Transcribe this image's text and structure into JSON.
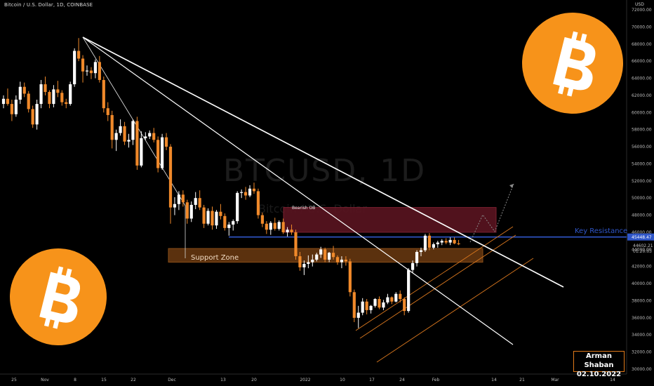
{
  "header": {
    "title": "Bitcoin / U.S. Dollar, 1D, COINBASE",
    "currency": "USD"
  },
  "watermark": {
    "symbol": "BTCUSD, 1D",
    "name": "Bitcoin / U.S. Dollar"
  },
  "signature": {
    "name": "Arman Shaban",
    "date": "02.10.2022"
  },
  "colors": {
    "background": "#000000",
    "up_candle": "#ffffff",
    "down_candle": "#f0892a",
    "trendline": "#ffffff",
    "key_resistance": "#2f56c8",
    "support_zone": "#6b3a10",
    "bearish_ob": "#5a1420",
    "channel": "#d9771e",
    "logo": "#f7931a"
  },
  "chart_data": {
    "type": "candlestick",
    "y_axis": {
      "min": 30000,
      "max": 72000,
      "step": 2000,
      "ticks": [
        "72000.00",
        "70000.00",
        "68000.00",
        "66000.00",
        "64000.00",
        "62000.00",
        "60000.00",
        "58000.00",
        "56000.00",
        "54000.00",
        "52000.00",
        "50000.00",
        "48000.00",
        "46000.00",
        "44000.00",
        "42000.00",
        "40000.00",
        "38000.00",
        "36000.00",
        "34000.00",
        "32000.00",
        "30000.00"
      ]
    },
    "x_axis": {
      "ticks": [
        "25",
        "Nov",
        "8",
        "15",
        "22",
        "Dec",
        "13",
        "20",
        "2022",
        "10",
        "17",
        "24",
        "Feb",
        "14",
        "21",
        "Mar",
        "14"
      ]
    },
    "candle_count": 110,
    "candles_ohlc": [
      [
        61000,
        62000,
        60500,
        61600
      ],
      [
        61600,
        62800,
        60800,
        61000
      ],
      [
        61000,
        61500,
        59000,
        59800
      ],
      [
        59800,
        62000,
        59500,
        61500
      ],
      [
        61500,
        63600,
        61000,
        63000
      ],
      [
        63000,
        63500,
        61800,
        62200
      ],
      [
        62200,
        62500,
        60000,
        60400
      ],
      [
        60400,
        60800,
        58200,
        58600
      ],
      [
        58600,
        61500,
        58000,
        61000
      ],
      [
        61000,
        63800,
        60500,
        63300
      ],
      [
        63300,
        64200,
        62000,
        62400
      ],
      [
        62400,
        62600,
        60500,
        61000
      ],
      [
        61000,
        63200,
        60600,
        62700
      ],
      [
        62700,
        63700,
        61800,
        62300
      ],
      [
        62300,
        62600,
        60800,
        61200
      ],
      [
        61200,
        61600,
        60500,
        61000
      ],
      [
        61000,
        63600,
        60800,
        63300
      ],
      [
        63300,
        67500,
        63000,
        67200
      ],
      [
        67200,
        68700,
        66000,
        66300
      ],
      [
        66300,
        66700,
        63500,
        64800
      ],
      [
        64800,
        65500,
        64300,
        64900
      ],
      [
        64900,
        65300,
        63900,
        64600
      ],
      [
        64600,
        66200,
        64000,
        65900
      ],
      [
        65900,
        66600,
        63500,
        63800
      ],
      [
        63800,
        64200,
        60000,
        60500
      ],
      [
        60500,
        61200,
        59000,
        59700
      ],
      [
        59700,
        60200,
        55800,
        56800
      ],
      [
        56800,
        58000,
        55500,
        57600
      ],
      [
        57600,
        59200,
        57300,
        58400
      ],
      [
        58400,
        58900,
        56200,
        56600
      ],
      [
        56600,
        57500,
        55900,
        56800
      ],
      [
        56800,
        59200,
        56200,
        59000
      ],
      [
        59000,
        59500,
        53300,
        53800
      ],
      [
        53800,
        57800,
        53600,
        57000
      ],
      [
        57000,
        57700,
        56800,
        57200
      ],
      [
        57200,
        57900,
        56900,
        57600
      ],
      [
        57600,
        58200,
        56500,
        56800
      ],
      [
        56800,
        57200,
        53000,
        53500
      ],
      [
        53500,
        57500,
        53300,
        57100
      ],
      [
        57100,
        57600,
        55600,
        56000
      ],
      [
        56000,
        56300,
        47000,
        48900
      ],
      [
        48900,
        50100,
        48000,
        49300
      ],
      [
        49300,
        50800,
        48600,
        50400
      ],
      [
        50400,
        50900,
        49000,
        49500
      ],
      [
        49500,
        49800,
        47000,
        47600
      ],
      [
        47600,
        49600,
        47200,
        49200
      ],
      [
        49200,
        50700,
        48700,
        50000
      ],
      [
        50000,
        50900,
        48600,
        48900
      ],
      [
        48900,
        49200,
        46500,
        47000
      ],
      [
        47000,
        48800,
        46800,
        48500
      ],
      [
        48500,
        49000,
        46300,
        46800
      ],
      [
        46800,
        48600,
        46400,
        48400
      ],
      [
        48400,
        49300,
        47500,
        47900
      ],
      [
        47900,
        48200,
        46200,
        46500
      ],
      [
        46500,
        47200,
        45600,
        46900
      ],
      [
        46900,
        47500,
        46200,
        47300
      ],
      [
        47300,
        50800,
        47000,
        50600
      ],
      [
        50600,
        51000,
        50000,
        50700
      ],
      [
        50700,
        51300,
        49800,
        50300
      ],
      [
        50300,
        51500,
        50100,
        51100
      ],
      [
        51100,
        51800,
        50500,
        50800
      ],
      [
        50800,
        51100,
        47600,
        48000
      ],
      [
        48000,
        48300,
        46600,
        47000
      ],
      [
        47000,
        47300,
        45800,
        46300
      ],
      [
        46300,
        47300,
        45700,
        47100
      ],
      [
        47100,
        47700,
        46200,
        46400
      ],
      [
        46400,
        47400,
        46200,
        47200
      ],
      [
        47200,
        47600,
        45800,
        46000
      ],
      [
        46000,
        46600,
        45500,
        46300
      ],
      [
        46300,
        46900,
        45700,
        46000
      ],
      [
        46000,
        46300,
        42800,
        43200
      ],
      [
        43200,
        43700,
        41500,
        41900
      ],
      [
        41900,
        42700,
        41000,
        42300
      ],
      [
        42300,
        43300,
        41800,
        42500
      ],
      [
        42500,
        43400,
        42000,
        42800
      ],
      [
        42800,
        43600,
        42600,
        43400
      ],
      [
        43400,
        44300,
        43000,
        44000
      ],
      [
        44000,
        44200,
        42500,
        42800
      ],
      [
        42800,
        43700,
        42500,
        43600
      ],
      [
        43600,
        44400,
        42800,
        43100
      ],
      [
        43100,
        43300,
        42200,
        42500
      ],
      [
        42500,
        43200,
        41800,
        42800
      ],
      [
        42800,
        43200,
        42100,
        42600
      ],
      [
        42600,
        42900,
        38500,
        39000
      ],
      [
        39000,
        39300,
        35500,
        36000
      ],
      [
        36000,
        37400,
        34800,
        36600
      ],
      [
        36600,
        38300,
        36300,
        37900
      ],
      [
        37900,
        38200,
        36400,
        36900
      ],
      [
        36900,
        37500,
        36500,
        37400
      ],
      [
        37400,
        38300,
        37200,
        38200
      ],
      [
        38200,
        38500,
        37000,
        37200
      ],
      [
        37200,
        38100,
        36900,
        37800
      ],
      [
        37800,
        38800,
        37600,
        38400
      ],
      [
        38400,
        38500,
        37600,
        37900
      ],
      [
        37900,
        39000,
        37800,
        38800
      ],
      [
        38800,
        39200,
        37800,
        38200
      ],
      [
        38200,
        38400,
        36300,
        36800
      ],
      [
        36800,
        41800,
        36600,
        41600
      ],
      [
        41600,
        42700,
        41200,
        42400
      ],
      [
        42400,
        43900,
        42000,
        43700
      ],
      [
        43700,
        44200,
        43200,
        43900
      ],
      [
        43900,
        45800,
        43700,
        45600
      ],
      [
        45600,
        45900,
        43900,
        44200
      ],
      [
        44200,
        44800,
        44000,
        44600
      ],
      [
        44600,
        45000,
        44200,
        44800
      ],
      [
        44800,
        45200,
        44500,
        45000
      ],
      [
        45000,
        45300,
        44600,
        44800
      ],
      [
        44800,
        45400,
        44500,
        45100
      ],
      [
        45100,
        45400,
        44600,
        44700
      ],
      [
        44700,
        45100,
        44500,
        44602
      ]
    ],
    "levels": [
      {
        "name": "Key Resistance",
        "price": 45448.47
      },
      {
        "name": "Support Zone",
        "low": 42500,
        "high": 44100
      },
      {
        "name": "Bearish OB",
        "low": 46000,
        "high": 48900
      }
    ],
    "price_labels": [
      "45448.47",
      "44602.21",
      "01:20:03"
    ],
    "trendlines": [
      {
        "from": [
          "Nov 10",
          69000
        ],
        "to": [
          "Feb 20",
          39900
        ]
      },
      {
        "from": [
          "Nov 10",
          69000
        ],
        "to": [
          "Feb 17",
          33200
        ]
      },
      {
        "from": [
          "Nov 10",
          69000
        ],
        "to": [
          "Dec 4",
          49000
        ]
      }
    ]
  }
}
